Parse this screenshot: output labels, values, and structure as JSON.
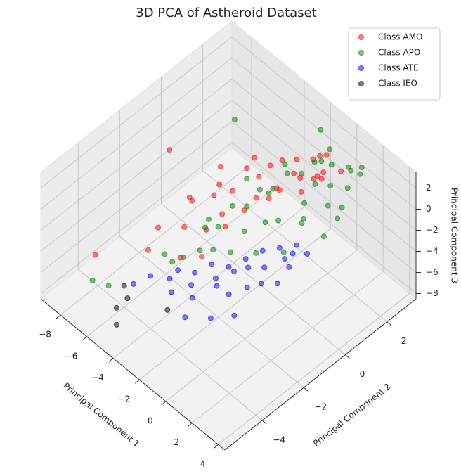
{
  "chart_data": {
    "type": "scatter3d",
    "title": "3D PCA of Astheroid Dataset",
    "xlabel": "Principal Component 1",
    "ylabel": "Principal Component 2",
    "zlabel": "Principal Component 3",
    "xlim": [
      -9.5,
      4.5
    ],
    "ylim": [
      -5.8,
      3.4
    ],
    "zlim": [
      -8.5,
      3.5
    ],
    "xticks": [
      {
        "value": -8,
        "label": "−8"
      },
      {
        "value": -6,
        "label": "−6"
      },
      {
        "value": -4,
        "label": "−4"
      },
      {
        "value": -2,
        "label": "−2"
      },
      0,
      2,
      4
    ],
    "yticks": [
      {
        "value": -4,
        "label": "−4"
      },
      {
        "value": -2,
        "label": "−2"
      },
      0,
      2
    ],
    "zticks": [
      {
        "value": -8,
        "label": "−8"
      },
      {
        "value": -6,
        "label": "−6"
      },
      {
        "value": -4,
        "label": "−4"
      },
      {
        "value": -2,
        "label": "−2"
      },
      0,
      2
    ],
    "grid": true,
    "legend": "upper right",
    "series": [
      {
        "name": "Class AMO",
        "color": "#ff0000",
        "x": [
          -6.3,
          -4.8,
          -6.5,
          -4,
          -3.5,
          -3,
          -2.5,
          -2,
          -1.5,
          -1,
          -0.5,
          0,
          0.5,
          -3.8,
          -2.8,
          -2.2,
          -1.8,
          -1.2,
          -0.8,
          -0.2,
          0.3,
          -4.2,
          -3.2,
          -2.6,
          -1.6,
          -0.6,
          0.8,
          -3.6,
          -2.4,
          -1.4,
          -0.4,
          1.0,
          -5,
          -4.5,
          -2,
          -1,
          -3,
          0.2
        ],
        "y": [
          -5.2,
          -3.6,
          -1.5,
          -2,
          -1,
          0,
          -1.5,
          0.5,
          -0.5,
          1,
          0,
          1.5,
          1,
          -2.5,
          -0.8,
          1.2,
          -1.8,
          0.3,
          1.8,
          0.8,
          1.6,
          -0.5,
          0.5,
          -2.2,
          -1,
          2,
          1.2,
          -1.2,
          0.2,
          1.4,
          2.2,
          2,
          -3,
          -1.8,
          -2.8,
          -0.2,
          -3.2,
          0.6
        ],
        "z": [
          -2,
          -2.5,
          2,
          0.5,
          1,
          1.5,
          0,
          2,
          1,
          1.5,
          2,
          1.5,
          2.5,
          -1,
          0.8,
          1.2,
          0,
          1,
          1.8,
          2.2,
          2,
          1.2,
          1.5,
          -0.5,
          0.5,
          2,
          2.5,
          0.2,
          1,
          1.8,
          2,
          2.2,
          -1.5,
          0,
          -1.5,
          1,
          -2,
          1.6
        ]
      },
      {
        "name": "Class APO",
        "color": "#008000",
        "x": [
          -6.2,
          -5.6,
          -4.5,
          -5.5,
          -3,
          -2.5,
          -2,
          -1.5,
          -1,
          -0.5,
          0,
          0.5,
          1,
          1.5,
          -2.8,
          -2.2,
          -1.8,
          -1.2,
          -0.8,
          -0.2,
          0.2,
          0.8,
          1.2,
          -2.6,
          -1.6,
          -0.6,
          0.4,
          1.4,
          -3.4,
          -2.4,
          -1.4,
          -0.4,
          0.6,
          1.6,
          -3,
          -2,
          -1,
          0,
          1,
          2,
          -1.8,
          -0.8,
          0.3,
          -4,
          -3.6
        ],
        "y": [
          -5.4,
          -5,
          -3,
          1,
          -2,
          -1,
          0,
          1,
          2,
          2.5,
          3,
          2.8,
          3,
          2.6,
          -1.5,
          -0.5,
          0.5,
          1.5,
          2.2,
          1,
          2,
          1.5,
          2.2,
          -2.5,
          -1,
          0,
          0.5,
          1.8,
          -2.8,
          -2,
          -1.8,
          -1.2,
          -0.5,
          0.8,
          0,
          1.2,
          -0.2,
          -1,
          0.2,
          1.2,
          2.8,
          2.6,
          1.2,
          -1.2,
          -3.2
        ],
        "z": [
          -4,
          -4.5,
          -3.5,
          2,
          -1,
          0,
          0.5,
          1,
          1,
          0.5,
          0,
          0.5,
          1,
          1.5,
          -1.5,
          -0.5,
          0,
          0.5,
          1,
          -0.5,
          0,
          -0.5,
          0.5,
          -2,
          -1.5,
          -1,
          -1,
          -0.5,
          -3,
          -2.5,
          -2,
          -2,
          -2,
          -1.5,
          0.5,
          1,
          1.5,
          1,
          0.5,
          0,
          2,
          1.5,
          1.5,
          -2.5,
          -3
        ]
      },
      {
        "name": "Class ATE",
        "color": "#0000ff",
        "x": [
          -3.5,
          -3,
          -2.5,
          -2,
          -1.5,
          -1,
          -0.5,
          0,
          0.5,
          1,
          -2.8,
          -2.2,
          -1.6,
          -1,
          -0.4,
          0.2,
          0.8,
          -3.2,
          -2.4,
          -1.8,
          -1.2,
          -0.6,
          0,
          0.6,
          -4.5,
          -4,
          -2,
          -1,
          0,
          -3.8
        ],
        "y": [
          -3,
          -2.5,
          -2,
          -1.5,
          -1,
          -0.5,
          0,
          0.5,
          0,
          -0.5,
          -2.8,
          -2,
          -1.5,
          -1.2,
          -0.8,
          -0.2,
          0.5,
          -3.5,
          -3,
          -2.2,
          -2,
          -1.5,
          -1.2,
          -0.8,
          -4.5,
          -4,
          -3.6,
          -3,
          -2.5,
          -3.2
        ],
        "z": [
          -4,
          -4.5,
          -4,
          -4.5,
          -4,
          -3.5,
          -3.5,
          -3.5,
          -3,
          -3,
          -5,
          -5,
          -4.5,
          -4,
          -4,
          -3.5,
          -3.5,
          -5,
          -5.5,
          -5,
          -5.5,
          -5,
          -4.5,
          -4.5,
          -4,
          -3.5,
          -6,
          -6,
          -5.5,
          -4.8
        ]
      },
      {
        "name": "Class IEO",
        "color": "#000000",
        "x": [
          -5,
          -4.8,
          -3.5,
          -6,
          -4.2
        ],
        "y": [
          -5,
          -4.6,
          -3.5,
          -4,
          -5.5
        ],
        "z": [
          -6,
          -5.5,
          -7,
          -6.5,
          -6
        ]
      }
    ]
  }
}
